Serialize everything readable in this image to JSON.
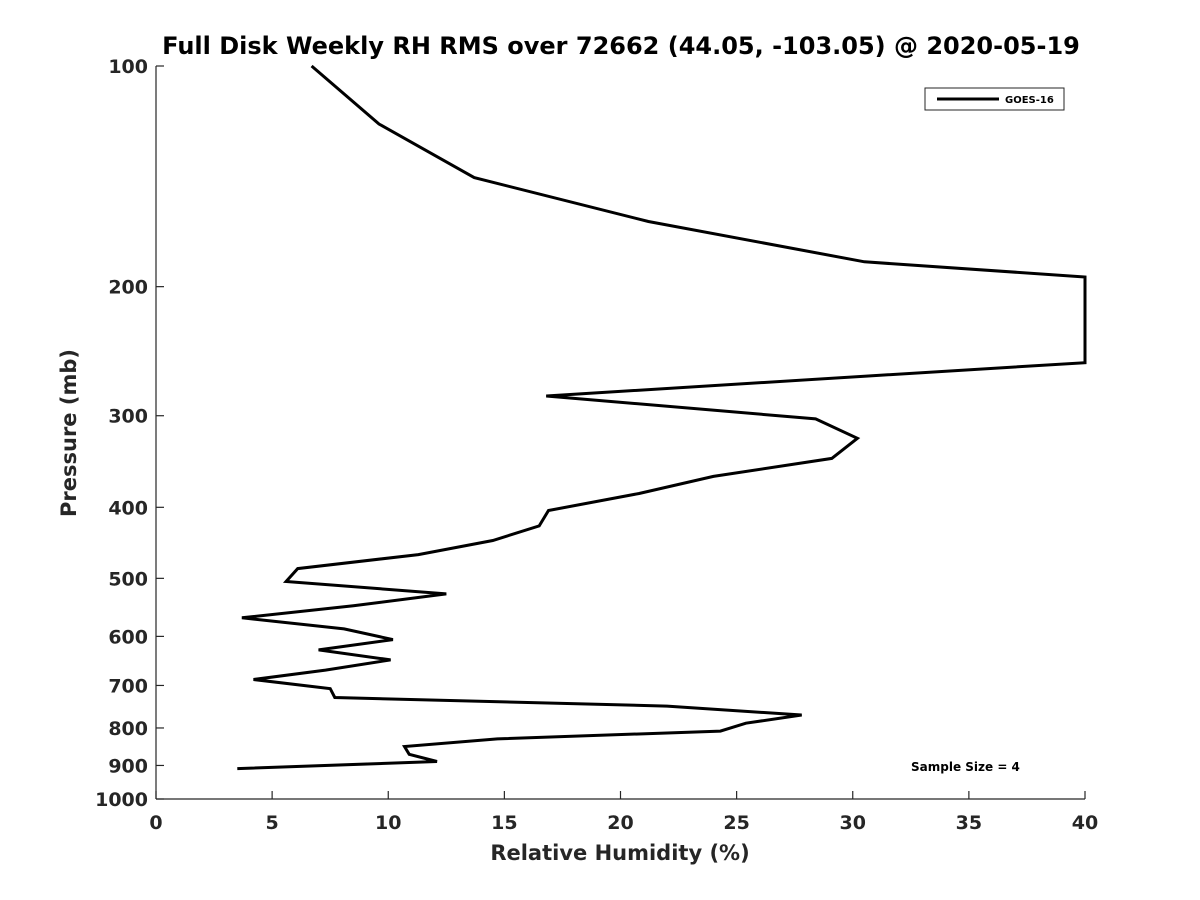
{
  "chart_data": {
    "type": "line",
    "title": "Full Disk Weekly RH RMS over 72662 (44.05, -103.05) @ 2020-05-19",
    "xlabel": "Relative Humidity (%)",
    "ylabel": "Pressure (mb)",
    "xlim": [
      0,
      40
    ],
    "ylim": [
      100,
      1000
    ],
    "y_scale": "log",
    "y_reversed": true,
    "grid": false,
    "legend_position": "top-right",
    "x_ticks": [
      "0",
      "5",
      "10",
      "15",
      "20",
      "25",
      "30",
      "35",
      "40"
    ],
    "y_ticks": [
      "100",
      "200",
      "300",
      "400",
      "500",
      "600",
      "700",
      "800",
      "900",
      "1000"
    ],
    "annotation": "Sample Size = 4",
    "series": [
      {
        "name": "GOES-16",
        "color": "#000000",
        "points": [
          [
            6.7,
            100
          ],
          [
            9.6,
            120
          ],
          [
            13.7,
            142
          ],
          [
            21.2,
            163
          ],
          [
            30.5,
            185
          ],
          [
            40,
            194
          ],
          [
            40,
            254
          ],
          [
            30.5,
            265
          ],
          [
            16.8,
            282
          ],
          [
            28.4,
            303
          ],
          [
            30.2,
            322
          ],
          [
            29.1,
            343
          ],
          [
            24,
            363
          ],
          [
            20.8,
            383
          ],
          [
            16.9,
            404
          ],
          [
            16.5,
            424
          ],
          [
            14.5,
            444
          ],
          [
            11.3,
            464
          ],
          [
            6.1,
            485
          ],
          [
            5.6,
            505
          ],
          [
            12.5,
            525
          ],
          [
            8.5,
            545
          ],
          [
            3.7,
            566
          ],
          [
            8.1,
            586
          ],
          [
            10.2,
            606
          ],
          [
            7.0,
            626
          ],
          [
            10.1,
            646
          ],
          [
            7.3,
            667
          ],
          [
            4.2,
            687
          ],
          [
            7.5,
            707
          ],
          [
            7.7,
            727
          ],
          [
            22,
            747
          ],
          [
            27.8,
            768
          ],
          [
            25.4,
            788
          ],
          [
            24.3,
            808
          ],
          [
            14.7,
            828
          ],
          [
            10.7,
            848
          ],
          [
            10.9,
            869
          ],
          [
            12.1,
            889
          ],
          [
            3.5,
            909
          ]
        ]
      }
    ]
  }
}
